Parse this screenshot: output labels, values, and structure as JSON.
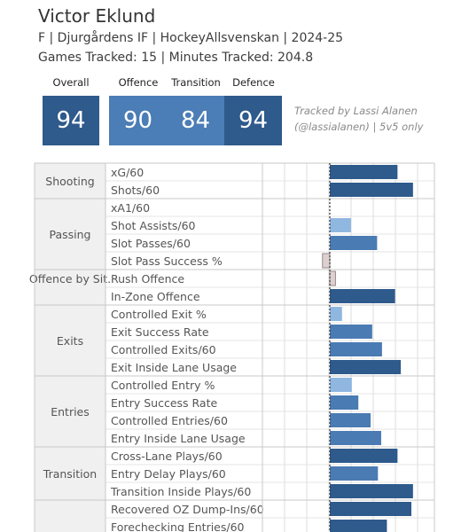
{
  "player": {
    "name": "Victor Eklund",
    "info": "F | Djurgårdens IF | HockeyAllsvenskan | 2024-25",
    "tracked": "Games Tracked: 15 | Minutes Tracked: 204.8"
  },
  "scores": {
    "overall_label": "Overall",
    "overall": "94",
    "offence_label": "Offence",
    "offence": "90",
    "transition_label": "Transition",
    "transition": "84",
    "defence_label": "Defence",
    "defence": "94"
  },
  "credit": {
    "line1": "Tracked by Lassi Alanen",
    "line2": "(@lassialanen) | 5v5 only"
  },
  "colors": {
    "dark": "#2e5a8c",
    "mid": "#4a7bb3",
    "light": "#8fb7e0",
    "neg_fill": "#ddd0d0",
    "grid": "#dddddd",
    "box_dark": "#2e5a8c",
    "box_mid": "#4b7db6"
  },
  "chart_data": {
    "type": "bar",
    "orientation": "horizontal",
    "xlim": [
      -0.1,
      1.0
    ],
    "groups": [
      {
        "category": "Shooting",
        "metrics": [
          {
            "label": "xG/60",
            "value": 0.83,
            "shade": "dark"
          },
          {
            "label": "Shots/60",
            "value": 1.02,
            "shade": "dark"
          }
        ]
      },
      {
        "category": "Passing",
        "metrics": [
          {
            "label": "xA1/60",
            "value": 0.0,
            "shade": "light"
          },
          {
            "label": "Shot Assists/60",
            "value": 0.26,
            "shade": "light"
          },
          {
            "label": "Slot Passes/60",
            "value": 0.58,
            "shade": "mid"
          },
          {
            "label": "Slot Pass Success %",
            "value": -0.09,
            "shade": "neg"
          }
        ]
      },
      {
        "category": "Offence by Sit.",
        "metrics": [
          {
            "label": "Rush Offence",
            "value": 0.07,
            "shade": "neg"
          },
          {
            "label": "In-Zone Offence",
            "value": 0.8,
            "shade": "dark"
          }
        ]
      },
      {
        "category": "Exits",
        "metrics": [
          {
            "label": "Controlled Exit %",
            "value": 0.15,
            "shade": "light"
          },
          {
            "label": "Exit Success Rate",
            "value": 0.52,
            "shade": "mid"
          },
          {
            "label": "Controlled Exits/60",
            "value": 0.64,
            "shade": "mid"
          },
          {
            "label": "Exit Inside Lane Usage",
            "value": 0.87,
            "shade": "dark"
          }
        ]
      },
      {
        "category": "Entries",
        "metrics": [
          {
            "label": "Controlled Entry %",
            "value": 0.27,
            "shade": "light"
          },
          {
            "label": "Entry Success Rate",
            "value": 0.35,
            "shade": "mid"
          },
          {
            "label": "Controlled Entries/60",
            "value": 0.5,
            "shade": "mid"
          },
          {
            "label": "Entry Inside Lane Usage",
            "value": 0.63,
            "shade": "mid"
          }
        ]
      },
      {
        "category": "Transition",
        "metrics": [
          {
            "label": "Cross-Lane Plays/60",
            "value": 0.83,
            "shade": "dark"
          },
          {
            "label": "Entry Delay Plays/60",
            "value": 0.59,
            "shade": "mid"
          },
          {
            "label": "Transition Inside Plays/60",
            "value": 1.02,
            "shade": "dark"
          }
        ]
      },
      {
        "category": "",
        "metrics": [
          {
            "label": "Recovered OZ Dump-Ins/60",
            "value": 1.0,
            "shade": "dark"
          },
          {
            "label": "Forechecking Entries/60",
            "value": 0.7,
            "shade": "dark"
          }
        ]
      }
    ]
  }
}
